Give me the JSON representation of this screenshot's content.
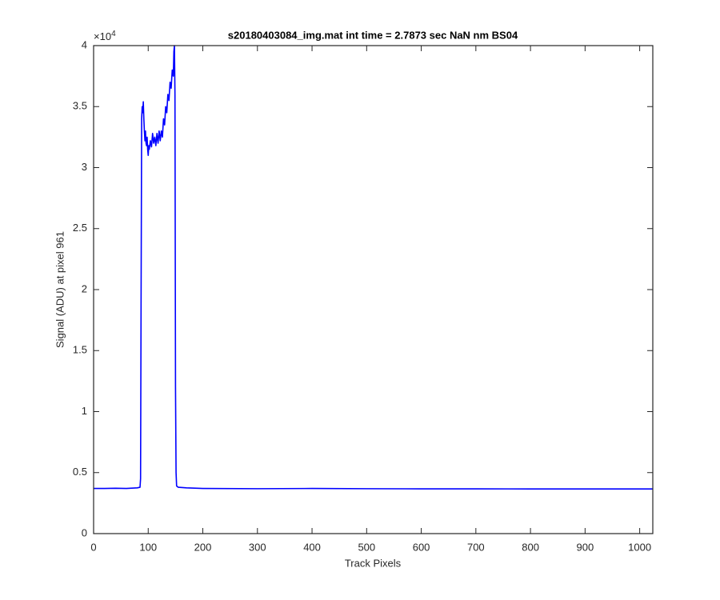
{
  "chart_data": {
    "type": "line",
    "title": "s20180403084_img.mat int time = 2.7873 sec  NaN nm BS04",
    "x_label": "Track Pixels",
    "y_label": "Signal (ADU) at pixel 961",
    "y_multiplier": {
      "base": "×10",
      "exponent": "4"
    },
    "xlim": [
      0,
      1024
    ],
    "ylim": [
      0,
      40000
    ],
    "xticks": [
      0,
      100,
      200,
      300,
      400,
      500,
      600,
      700,
      800,
      900,
      1000
    ],
    "yticks": [
      0,
      {
        "value": 5000,
        "label": "0.5"
      },
      {
        "value": 10000,
        "label": "1"
      },
      {
        "value": 15000,
        "label": "1.5"
      },
      {
        "value": 20000,
        "label": "2"
      },
      {
        "value": 25000,
        "label": "2.5"
      },
      {
        "value": 30000,
        "label": "3"
      },
      {
        "value": 35000,
        "label": "3.5"
      },
      {
        "value": 40000,
        "label": "4"
      }
    ],
    "grid": false,
    "x": [
      0,
      20,
      40,
      60,
      80,
      85,
      86,
      87,
      88,
      89,
      90,
      91,
      92,
      93,
      94,
      95,
      96,
      97,
      98,
      99,
      100,
      101,
      102,
      104,
      106,
      108,
      110,
      112,
      114,
      116,
      118,
      120,
      122,
      124,
      126,
      128,
      130,
      132,
      134,
      136,
      138,
      140,
      142,
      144,
      146,
      147,
      148,
      149,
      150,
      151,
      152,
      155,
      170,
      200,
      300,
      400,
      500,
      600,
      700,
      800,
      900,
      1000,
      1024
    ],
    "series": [
      {
        "color": "#0000ff",
        "values": [
          3700,
          3700,
          3720,
          3700,
          3750,
          3800,
          4500,
          20000,
          34000,
          35000,
          34500,
          35400,
          34000,
          33000,
          32200,
          33000,
          32000,
          31800,
          32500,
          31500,
          31000,
          31800,
          31500,
          32200,
          31700,
          32800,
          32000,
          32500,
          31800,
          32800,
          32000,
          33000,
          32200,
          33000,
          32500,
          34000,
          33500,
          35000,
          34500,
          36000,
          35500,
          37000,
          36500,
          38000,
          37500,
          39500,
          40000,
          36000,
          12000,
          5000,
          3900,
          3800,
          3750,
          3700,
          3680,
          3700,
          3680,
          3670,
          3670,
          3660,
          3660,
          3660,
          3660
        ]
      }
    ]
  }
}
